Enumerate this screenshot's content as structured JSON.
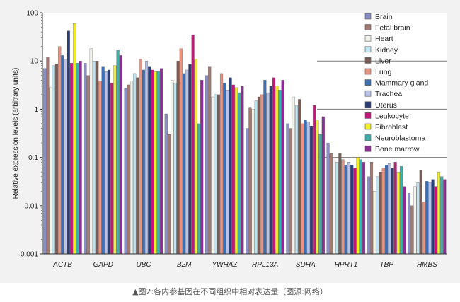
{
  "caption": "▲图2:各内参基因在不同组织中相对表达量（图源:网络）",
  "chart_data": {
    "type": "bar",
    "ylabel": "Relative expression levels (arbitrary units)",
    "yscale": "log",
    "ylim": [
      0.001,
      100
    ],
    "y_ticks": [
      "0.001",
      "0.01",
      "0.1",
      "1",
      "10",
      "100"
    ],
    "reference_lines": [
      10,
      1,
      0.1
    ],
    "legend_position": "top-right",
    "categories": [
      "ACTB",
      "GAPD",
      "UBC",
      "B2M",
      "YWHAZ",
      "RPL13A",
      "SDHA",
      "HPRT1",
      "TBP",
      "HMBS"
    ],
    "series": [
      {
        "name": "Brain",
        "color": "#8a8fc7",
        "values": [
          7,
          9,
          2.7,
          0.8,
          5,
          0.4,
          0.5,
          0.2,
          0.04,
          0.018
        ]
      },
      {
        "name": "Fetal brain",
        "color": "#a07a72",
        "values": [
          12,
          5,
          3.2,
          0.3,
          7.5,
          1.1,
          0.4,
          0.12,
          0.08,
          0.01
        ]
      },
      {
        "name": "Heart",
        "color": "#f3f3ea",
        "values": [
          2.8,
          18,
          3.8,
          4,
          1.8,
          1,
          1.8,
          0.1,
          0.02,
          0.025
        ]
      },
      {
        "name": "Kidney",
        "color": "#bfe3ef",
        "values": [
          8,
          10,
          5.5,
          3.5,
          2,
          1.5,
          1.2,
          0.08,
          0.04,
          0.03
        ]
      },
      {
        "name": "Liver",
        "color": "#7a5c57",
        "values": [
          8.5,
          10,
          4.5,
          10,
          2,
          1.8,
          1.6,
          0.12,
          0.05,
          0.055
        ]
      },
      {
        "name": "Lung",
        "color": "#e99480",
        "values": [
          20,
          3.8,
          11,
          18,
          5.5,
          2,
          0.5,
          0.09,
          0.06,
          0.012
        ]
      },
      {
        "name": "Mammary gland",
        "color": "#3c6eb6",
        "values": [
          13,
          7.5,
          6.5,
          5.5,
          3.5,
          4,
          0.6,
          0.07,
          0.07,
          0.032
        ]
      },
      {
        "name": "Trachea",
        "color": "#b9c3ea",
        "values": [
          11,
          6,
          10,
          6.5,
          2.5,
          2.2,
          0.55,
          0.08,
          0.075,
          0.03
        ]
      },
      {
        "name": "Uterus",
        "color": "#2c3e78",
        "values": [
          42,
          6.5,
          7.5,
          8.5,
          4.5,
          3,
          0.45,
          0.07,
          0.06,
          0.035
        ]
      },
      {
        "name": "Leukocyte",
        "color": "#c8157b",
        "values": [
          9,
          3.5,
          6.5,
          35,
          3.2,
          4.5,
          1.2,
          0.06,
          0.08,
          0.025
        ]
      },
      {
        "name": "Fibroblast",
        "color": "#f2ee2c",
        "values": [
          60,
          8,
          6,
          11,
          2.8,
          3,
          0.6,
          0.1,
          0.05,
          0.05
        ]
      },
      {
        "name": "Neuroblastoma",
        "color": "#3ab1aa",
        "values": [
          9,
          17,
          6,
          0.5,
          2.2,
          2.5,
          0.3,
          0.09,
          0.065,
          0.04
        ]
      },
      {
        "name": "Bone marrow",
        "color": "#8b2d95",
        "values": [
          10,
          13,
          7,
          4,
          3,
          4,
          0.7,
          0.08,
          0.025,
          0.035
        ]
      }
    ]
  }
}
